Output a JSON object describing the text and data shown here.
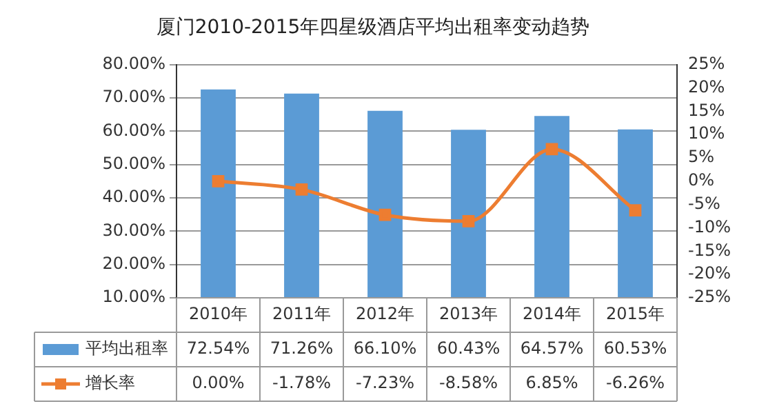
{
  "chart_data": {
    "type": "bar",
    "title": "厦门2010-2015年四星级酒店平均出租率变动趋势",
    "categories": [
      "2010年",
      "2011年",
      "2012年",
      "2013年",
      "2014年",
      "2015年"
    ],
    "series": [
      {
        "name": "平均出租率",
        "color": "#5b9bd5",
        "values": [
          72.54,
          71.26,
          66.1,
          60.43,
          64.57,
          60.53
        ],
        "value_labels": [
          "72.54%",
          "71.26%",
          "66.10%",
          "60.43%",
          "64.57%",
          "60.53%"
        ]
      },
      {
        "name": "增长率",
        "type": "line",
        "axis": "y2",
        "color": "#ed7d31",
        "marker": "square",
        "values": [
          0.0,
          -1.78,
          -7.23,
          -8.58,
          6.85,
          -6.26
        ],
        "value_labels": [
          "0.00%",
          "-1.78%",
          "-7.23%",
          "-8.58%",
          "6.85%",
          "-6.26%"
        ]
      }
    ],
    "ylim": [
      10,
      80
    ],
    "yticks": [
      {
        "value": 10,
        "label": "10.00%"
      },
      {
        "value": 20,
        "label": "20.00%"
      },
      {
        "value": 30,
        "label": "30.00%"
      },
      {
        "value": 40,
        "label": "40.00%"
      },
      {
        "value": 50,
        "label": "50.00%"
      },
      {
        "value": 60,
        "label": "60.00%"
      },
      {
        "value": 70,
        "label": "70.00%"
      },
      {
        "value": 80,
        "label": "80.00%"
      }
    ],
    "y2lim": [
      -25,
      25
    ],
    "y2ticks": [
      {
        "value": -25,
        "label": "-25%"
      },
      {
        "value": -20,
        "label": "-20%"
      },
      {
        "value": -15,
        "label": "-15%"
      },
      {
        "value": -10,
        "label": "-10%"
      },
      {
        "value": -5,
        "label": "-5%"
      },
      {
        "value": 0,
        "label": "0%"
      },
      {
        "value": 5,
        "label": "5%"
      },
      {
        "value": 10,
        "label": "10%"
      },
      {
        "value": 15,
        "label": "15%"
      },
      {
        "value": 20,
        "label": "20%"
      },
      {
        "value": 25,
        "label": "25%"
      }
    ],
    "grid": "y",
    "legend": "bottom"
  }
}
